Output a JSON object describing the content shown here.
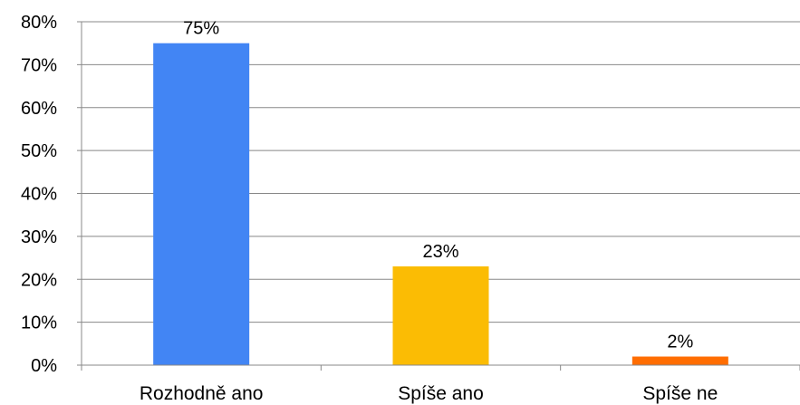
{
  "chart_data": {
    "type": "bar",
    "title": "",
    "xlabel": "",
    "ylabel": "",
    "categories": [
      "Rozhodně ano",
      "Spíše ano",
      "Spíše ne"
    ],
    "values": [
      75,
      23,
      2
    ],
    "value_labels": [
      "75%",
      "23%",
      "2%"
    ],
    "bar_colors": [
      "#4285F4",
      "#FBBC04",
      "#FF6D01"
    ],
    "ylim": [
      0,
      80
    ],
    "yticks": [
      0,
      10,
      20,
      30,
      40,
      50,
      60,
      70,
      80
    ],
    "ytick_labels": [
      "0%",
      "10%",
      "20%",
      "30%",
      "40%",
      "50%",
      "60%",
      "70%",
      "80%"
    ],
    "grid": true,
    "legend": "none"
  }
}
